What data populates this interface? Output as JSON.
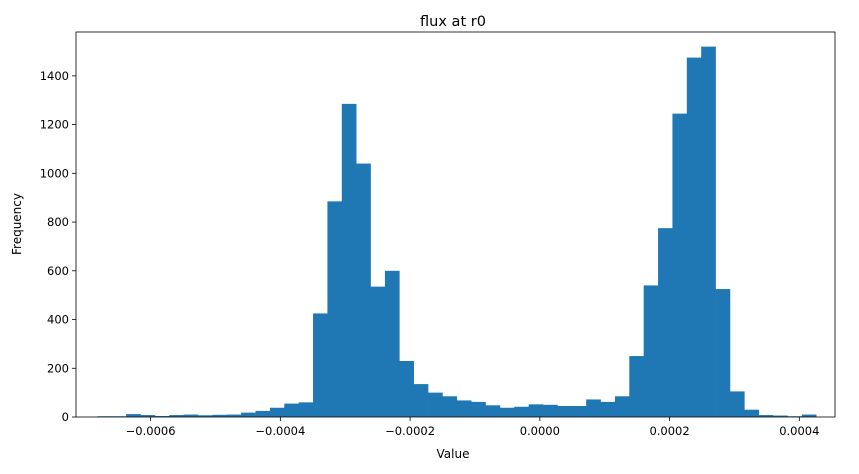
{
  "chart_data": {
    "type": "bar",
    "title": "flux at r0",
    "xlabel": "Value",
    "ylabel": "Frequency",
    "xlim": [
      -0.000715,
      0.000455
    ],
    "ylim": [
      0,
      1580
    ],
    "x_ticks": [
      -0.0006,
      -0.0004,
      -0.0002,
      0.0,
      0.0002,
      0.0004
    ],
    "x_tick_labels": [
      "−0.0006",
      "−0.0004",
      "−0.0002",
      "0.0000",
      "0.0002",
      "0.0004"
    ],
    "y_ticks": [
      0,
      200,
      400,
      600,
      800,
      1000,
      1200,
      1400
    ],
    "y_tick_labels": [
      "0",
      "200",
      "400",
      "600",
      "800",
      "1000",
      "1200",
      "1400"
    ],
    "grid": false,
    "bin_start": -0.000682,
    "bin_end": 0.000426,
    "values": [
      3,
      3,
      12,
      8,
      4,
      8,
      10,
      7,
      9,
      10,
      18,
      25,
      38,
      55,
      60,
      425,
      885,
      1285,
      1040,
      535,
      600,
      230,
      135,
      100,
      85,
      68,
      62,
      48,
      38,
      42,
      52,
      50,
      45,
      45,
      72,
      62,
      85,
      250,
      540,
      775,
      1245,
      1475,
      1520,
      525,
      105,
      30,
      8,
      6,
      3,
      10
    ],
    "color": "#1f77b4"
  }
}
